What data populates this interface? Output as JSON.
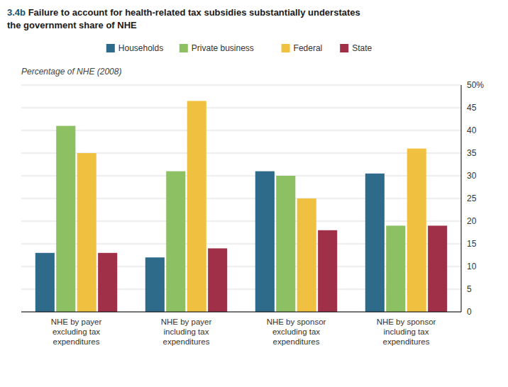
{
  "chart_data": {
    "type": "bar",
    "title": "3.4b Failure to account for health-related tax subsidies substantially understates\nthe government share of NHE",
    "y_label": "Percentage of NHE (2008)",
    "categories": [
      "NHE by payer\nexcluding tax\nexpenditures",
      "NHE by payer\nincluding tax\nexpenditures",
      "NHE by sponsor\nexcluding tax\nexpenditures",
      "NHE by sponsor\nincluding tax\nexpenditures"
    ],
    "series": [
      {
        "name": "Households",
        "color": "#2E6B8A",
        "values": [
          13,
          12,
          31,
          30.5
        ]
      },
      {
        "name": "Private business",
        "color": "#8DC063",
        "values": [
          41,
          31,
          30,
          19
        ]
      },
      {
        "name": "Federal",
        "color": "#F0C040",
        "values": [
          35,
          46.5,
          25,
          36
        ]
      },
      {
        "name": "State",
        "color": "#A03048",
        "values": [
          13,
          14,
          18,
          19
        ]
      }
    ],
    "ylim": [
      0,
      50
    ],
    "yticks": [
      0,
      5,
      10,
      15,
      20,
      25,
      30,
      35,
      40,
      45,
      {
        "value": 50,
        "label": "50%"
      }
    ],
    "grid": true,
    "legend": "top"
  }
}
